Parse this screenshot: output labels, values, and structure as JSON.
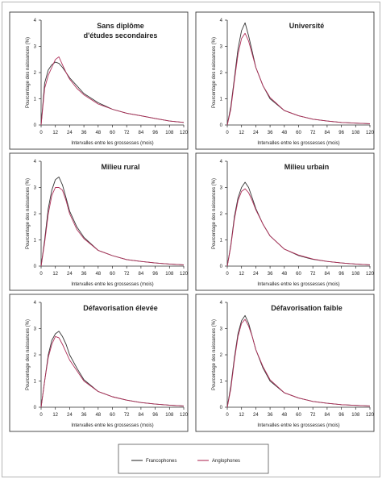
{
  "chart_data": {
    "type": "line",
    "colors": {
      "Francophones": "#333333",
      "Anglophones": "#b0305a"
    },
    "legend": [
      "Francophones",
      "Anglophones"
    ],
    "xlabel": "Intervalles entre les grossesses (mois)",
    "ylabel": "Pourcentage des naissances (%)",
    "xticks": [
      0,
      12,
      24,
      36,
      48,
      60,
      72,
      84,
      96,
      108,
      120
    ],
    "yticks": [
      0,
      1,
      2,
      3,
      4
    ],
    "xlim": [
      0,
      120
    ],
    "ylim": [
      0,
      4
    ],
    "x": [
      0,
      3,
      6,
      9,
      12,
      15,
      18,
      21,
      24,
      30,
      36,
      48,
      60,
      72,
      84,
      96,
      108,
      120
    ],
    "panels": [
      {
        "title": [
          "Sans diplôme",
          "d'études secondaires"
        ],
        "series": [
          {
            "name": "Francophones",
            "values": [
              0,
              1.6,
              2.1,
              2.3,
              2.4,
              2.35,
              2.2,
              2.0,
              1.8,
              1.5,
              1.2,
              0.85,
              0.6,
              0.45,
              0.35,
              0.25,
              0.15,
              0.1
            ]
          },
          {
            "name": "Anglophones",
            "values": [
              0,
              1.4,
              1.9,
              2.2,
              2.5,
              2.6,
              2.3,
              2.0,
              1.75,
              1.4,
              1.15,
              0.8,
              0.6,
              0.45,
              0.35,
              0.25,
              0.15,
              0.1
            ]
          }
        ]
      },
      {
        "title": [
          "Université"
        ],
        "series": [
          {
            "name": "Francophones",
            "values": [
              0,
              0.7,
              1.8,
              2.9,
              3.6,
              3.9,
              3.4,
              2.8,
              2.2,
              1.5,
              1.0,
              0.55,
              0.35,
              0.22,
              0.15,
              0.1,
              0.07,
              0.05
            ]
          },
          {
            "name": "Anglophones",
            "values": [
              0,
              0.6,
              1.7,
              2.7,
              3.3,
              3.5,
              3.2,
              2.7,
              2.2,
              1.5,
              1.05,
              0.55,
              0.35,
              0.22,
              0.15,
              0.1,
              0.07,
              0.05
            ]
          }
        ]
      },
      {
        "title": [
          "Milieu rural"
        ],
        "series": [
          {
            "name": "Francophones",
            "values": [
              0,
              1.0,
              2.2,
              2.9,
              3.3,
              3.4,
              3.1,
              2.6,
              2.1,
              1.5,
              1.1,
              0.6,
              0.4,
              0.25,
              0.18,
              0.12,
              0.08,
              0.05
            ]
          },
          {
            "name": "Anglophones",
            "values": [
              0,
              0.9,
              2.0,
              2.7,
              3.0,
              3.0,
              2.9,
              2.5,
              2.0,
              1.4,
              1.05,
              0.6,
              0.4,
              0.25,
              0.18,
              0.12,
              0.08,
              0.05
            ]
          }
        ]
      },
      {
        "title": [
          "Milieu urbain"
        ],
        "series": [
          {
            "name": "Francophones",
            "values": [
              0,
              0.8,
              1.9,
              2.6,
              3.0,
              3.2,
              3.0,
              2.6,
              2.2,
              1.6,
              1.15,
              0.65,
              0.4,
              0.26,
              0.18,
              0.12,
              0.08,
              0.05
            ]
          },
          {
            "name": "Anglophones",
            "values": [
              0,
              0.75,
              1.8,
              2.5,
              2.85,
              2.95,
              2.8,
              2.5,
              2.15,
              1.6,
              1.15,
              0.65,
              0.42,
              0.27,
              0.18,
              0.12,
              0.08,
              0.05
            ]
          }
        ]
      },
      {
        "title": [
          "Défavorisation élevée"
        ],
        "series": [
          {
            "name": "Francophones",
            "values": [
              0,
              1.0,
              2.0,
              2.55,
              2.8,
              2.9,
              2.7,
              2.4,
              2.0,
              1.5,
              1.05,
              0.6,
              0.4,
              0.27,
              0.18,
              0.12,
              0.08,
              0.05
            ]
          },
          {
            "name": "Anglophones",
            "values": [
              0,
              1.0,
              1.9,
              2.4,
              2.7,
              2.65,
              2.4,
              2.1,
              1.8,
              1.4,
              1.0,
              0.6,
              0.4,
              0.27,
              0.18,
              0.12,
              0.08,
              0.05
            ]
          }
        ]
      },
      {
        "title": [
          "Défavorisation faible"
        ],
        "series": [
          {
            "name": "Francophones",
            "values": [
              0,
              0.8,
              1.9,
              2.8,
              3.3,
              3.5,
              3.2,
              2.7,
              2.2,
              1.5,
              1.0,
              0.55,
              0.35,
              0.22,
              0.15,
              0.1,
              0.07,
              0.05
            ]
          },
          {
            "name": "Anglophones",
            "values": [
              0,
              0.7,
              1.8,
              2.7,
              3.2,
              3.35,
              3.1,
              2.7,
              2.2,
              1.55,
              1.05,
              0.55,
              0.35,
              0.22,
              0.15,
              0.1,
              0.07,
              0.05
            ]
          }
        ]
      }
    ]
  }
}
